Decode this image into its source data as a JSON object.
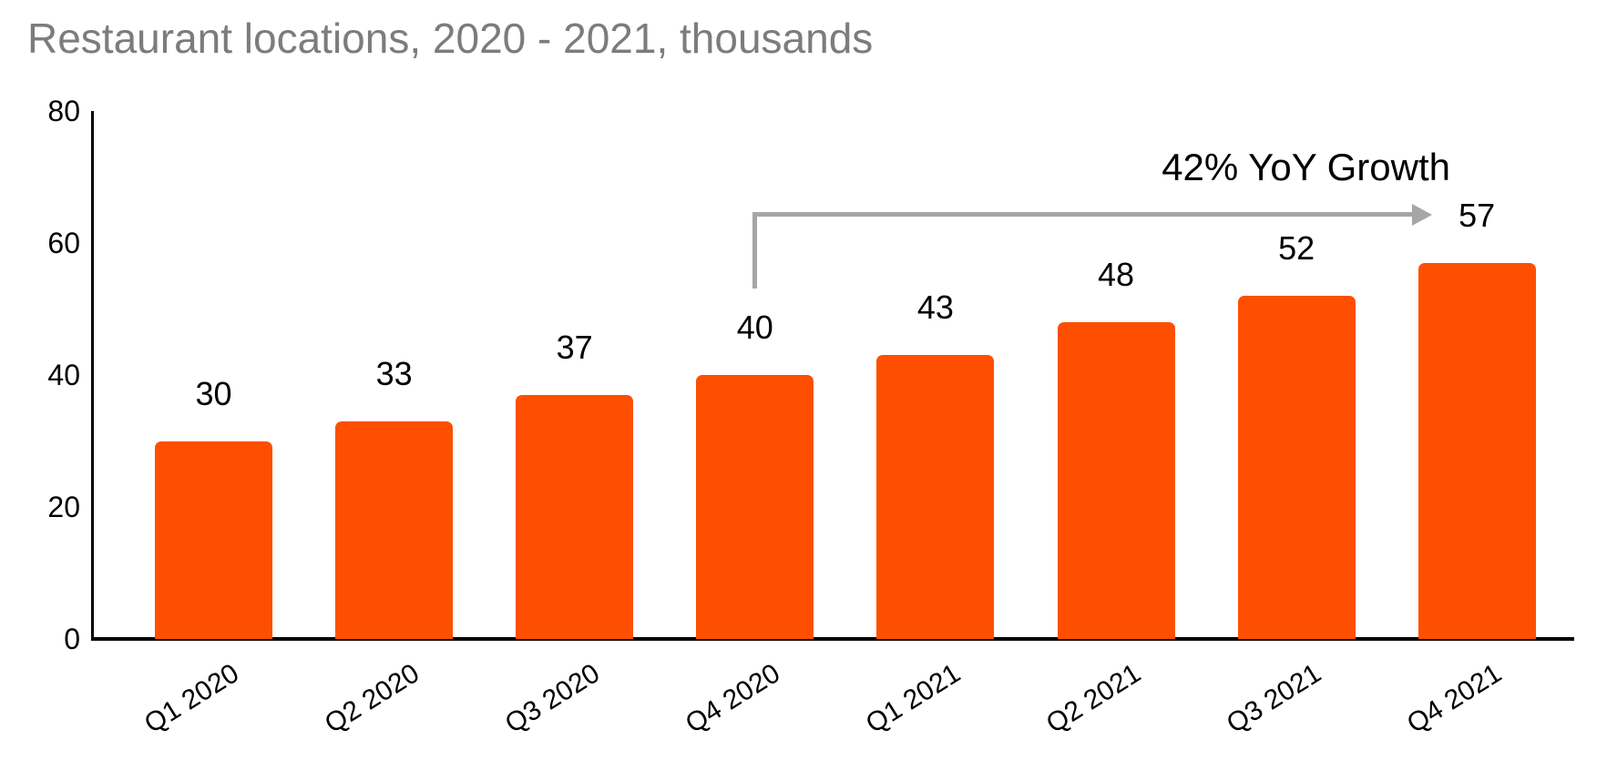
{
  "title": "Restaurant locations, 2020 - 2021, thousands",
  "annotation": {
    "label": "42% YoY Growth",
    "from_category": "Q4 2020",
    "to_category": "Q4 2021"
  },
  "colors": {
    "bar": "#fe4f00",
    "title_text": "#7c7c7c",
    "arrow": "#a6a6a6",
    "axis": "#000000",
    "value_text": "#000000"
  },
  "chart_data": {
    "type": "bar",
    "title": "Restaurant locations, 2020 - 2021, thousands",
    "categories": [
      "Q1 2020",
      "Q2 2020",
      "Q3 2020",
      "Q4 2020",
      "Q1 2021",
      "Q2 2021",
      "Q3 2021",
      "Q4 2021"
    ],
    "values": [
      30,
      33,
      37,
      40,
      43,
      48,
      52,
      57
    ],
    "bar_labels": [
      "30",
      "33",
      "37",
      "40",
      "43",
      "48",
      "52",
      "57"
    ],
    "xlabel": "",
    "ylabel": "",
    "ylim": [
      0,
      80
    ],
    "yticks": [
      0,
      20,
      40,
      60,
      80
    ],
    "grid": false,
    "legend": false,
    "annotation_text": "42% YoY Growth"
  }
}
